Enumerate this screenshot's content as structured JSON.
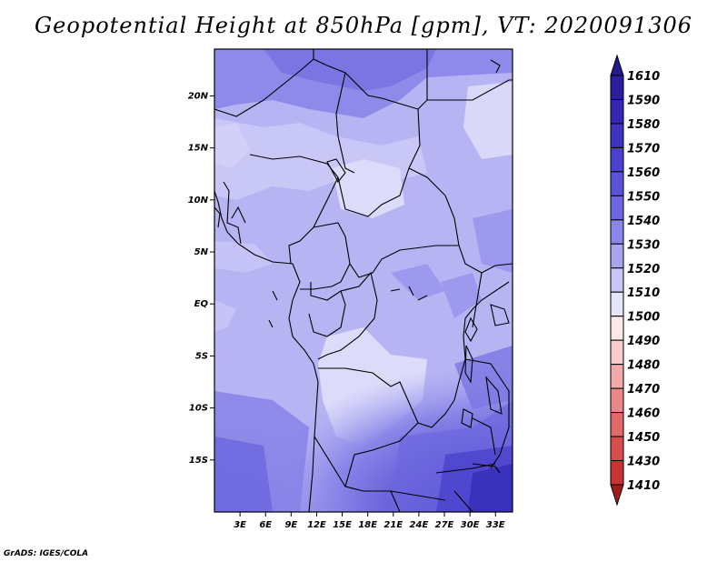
{
  "title": "Geopotential Height at 850hPa [gpm], VT: 2020091306",
  "credit": "GrADS: IGES/COLA",
  "map": {
    "y_ticks": [
      {
        "label": "20N",
        "lat": 20
      },
      {
        "label": "15N",
        "lat": 15
      },
      {
        "label": "10N",
        "lat": 10
      },
      {
        "label": "5N",
        "lat": 5
      },
      {
        "label": "EQ",
        "lat": 0
      },
      {
        "label": "5S",
        "lat": -5
      },
      {
        "label": "10S",
        "lat": -10
      },
      {
        "label": "15S",
        "lat": -15
      }
    ],
    "x_ticks": [
      {
        "label": "3E",
        "lon": 3
      },
      {
        "label": "6E",
        "lon": 6
      },
      {
        "label": "9E",
        "lon": 9
      },
      {
        "label": "12E",
        "lon": 12
      },
      {
        "label": "15E",
        "lon": 15
      },
      {
        "label": "18E",
        "lon": 18
      },
      {
        "label": "21E",
        "lon": 21
      },
      {
        "label": "24E",
        "lon": 24
      },
      {
        "label": "27E",
        "lon": 27
      },
      {
        "label": "30E",
        "lon": 30
      },
      {
        "label": "33E",
        "lon": 33
      }
    ],
    "lon_range": [
      0,
      35
    ],
    "lat_range": [
      -20,
      24.5
    ]
  },
  "colorbar": {
    "levels": [
      {
        "label": "1610",
        "color": "#2a1f9e"
      },
      {
        "label": "1590",
        "color": "#3428b0"
      },
      {
        "label": "1580",
        "color": "#3d33bf"
      },
      {
        "label": "1570",
        "color": "#4a42cc"
      },
      {
        "label": "1560",
        "color": "#5a53d6"
      },
      {
        "label": "1550",
        "color": "#6c67de"
      },
      {
        "label": "1540",
        "color": "#8a86e8"
      },
      {
        "label": "1530",
        "color": "#a9a6f0"
      },
      {
        "label": "1520",
        "color": "#c7c6f6"
      },
      {
        "label": "1510",
        "color": "#e4e4fb"
      },
      {
        "label": "1500",
        "color": "#fde8e8"
      },
      {
        "label": "1490",
        "color": "#f9cccc"
      },
      {
        "label": "1480",
        "color": "#f2a9a9"
      },
      {
        "label": "1470",
        "color": "#ea8888"
      },
      {
        "label": "1460",
        "color": "#e06a6a"
      },
      {
        "label": "1450",
        "color": "#d64d4d"
      },
      {
        "label": "1430",
        "color": "#c83434"
      },
      {
        "label": "1410",
        "color": "#b22222"
      }
    ],
    "arrow_top_color": "#241a8f",
    "arrow_bottom_color": "#a01c1c"
  }
}
